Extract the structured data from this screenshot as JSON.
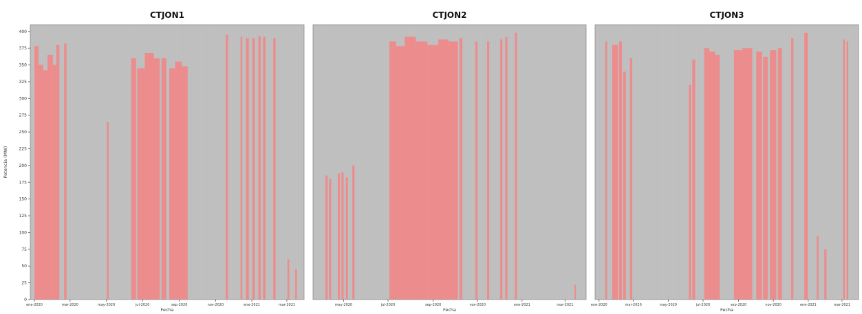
{
  "chart_data": [
    {
      "type": "bar",
      "title": "CTJON1",
      "xlabel": "Fecha",
      "ylabel": "Potencia (MW)",
      "ylim": [
        0,
        410
      ],
      "xlim": [
        "2019-12-25",
        "2021-03-30"
      ],
      "yticks": [
        0,
        25,
        50,
        75,
        100,
        125,
        150,
        175,
        200,
        225,
        250,
        275,
        300,
        325,
        350,
        375,
        400
      ],
      "xticks": [
        {
          "date": "2020-01-01",
          "label": "ene-2020"
        },
        {
          "date": "2020-03-01",
          "label": "mar-2020"
        },
        {
          "date": "2020-05-01",
          "label": "may-2020"
        },
        {
          "date": "2020-07-01",
          "label": "jul-2020"
        },
        {
          "date": "2020-09-01",
          "label": "sep-2020"
        },
        {
          "date": "2020-11-01",
          "label": "nov-2020"
        },
        {
          "date": "2021-01-01",
          "label": "ene-2021"
        },
        {
          "date": "2021-03-01",
          "label": "mar-2021"
        }
      ],
      "grid": true,
      "background_color": "#c0c0c0",
      "bar_color": "#ec8c8c",
      "bars": [
        {
          "start": "2020-01-01",
          "end": "2020-01-08",
          "value": 378
        },
        {
          "start": "2020-01-08",
          "end": "2020-01-16",
          "value": 350
        },
        {
          "start": "2020-01-16",
          "end": "2020-01-23",
          "value": 342
        },
        {
          "start": "2020-01-23",
          "end": "2020-02-01",
          "value": 365
        },
        {
          "start": "2020-02-01",
          "end": "2020-02-07",
          "value": 350
        },
        {
          "start": "2020-02-07",
          "end": "2020-02-12",
          "value": 380
        },
        {
          "start": "2020-02-20",
          "end": "2020-02-24",
          "value": 382
        },
        {
          "start": "2020-05-02",
          "end": "2020-05-05",
          "value": 265
        },
        {
          "start": "2020-06-12",
          "end": "2020-06-20",
          "value": 360
        },
        {
          "start": "2020-06-22",
          "end": "2020-07-05",
          "value": 345
        },
        {
          "start": "2020-07-05",
          "end": "2020-07-20",
          "value": 368
        },
        {
          "start": "2020-07-20",
          "end": "2020-07-30",
          "value": 360
        },
        {
          "start": "2020-08-02",
          "end": "2020-08-10",
          "value": 360
        },
        {
          "start": "2020-08-15",
          "end": "2020-08-25",
          "value": 345
        },
        {
          "start": "2020-08-25",
          "end": "2020-09-05",
          "value": 355
        },
        {
          "start": "2020-09-05",
          "end": "2020-09-15",
          "value": 348
        },
        {
          "start": "2020-11-18",
          "end": "2020-11-22",
          "value": 395
        },
        {
          "start": "2020-12-13",
          "end": "2020-12-16",
          "value": 392
        },
        {
          "start": "2020-12-22",
          "end": "2020-12-27",
          "value": 390
        },
        {
          "start": "2021-01-02",
          "end": "2021-01-06",
          "value": 390
        },
        {
          "start": "2021-01-12",
          "end": "2021-01-16",
          "value": 393
        },
        {
          "start": "2021-01-20",
          "end": "2021-01-24",
          "value": 392
        },
        {
          "start": "2021-02-06",
          "end": "2021-02-10",
          "value": 390
        },
        {
          "start": "2021-03-02",
          "end": "2021-03-05",
          "value": 60
        },
        {
          "start": "2021-03-15",
          "end": "2021-03-18",
          "value": 45
        }
      ]
    },
    {
      "type": "bar",
      "title": "CTJON2",
      "xlabel": "Fecha",
      "ylabel": "",
      "ylim": [
        0,
        410
      ],
      "xlim": [
        "2020-03-20",
        "2021-03-30"
      ],
      "xticks": [
        {
          "date": "2020-05-01",
          "label": "may-2020"
        },
        {
          "date": "2020-07-01",
          "label": "jul-2020"
        },
        {
          "date": "2020-09-01",
          "label": "sep-2020"
        },
        {
          "date": "2020-11-01",
          "label": "nov-2020"
        },
        {
          "date": "2021-01-01",
          "label": "ene-2021"
        },
        {
          "date": "2021-03-01",
          "label": "mar-2021"
        }
      ],
      "grid": true,
      "background_color": "#c0c0c0",
      "bar_color": "#ec8c8c",
      "bars": [
        {
          "start": "2020-04-06",
          "end": "2020-04-09",
          "value": 185
        },
        {
          "start": "2020-04-11",
          "end": "2020-04-14",
          "value": 180
        },
        {
          "start": "2020-04-23",
          "end": "2020-04-26",
          "value": 188
        },
        {
          "start": "2020-04-28",
          "end": "2020-05-01",
          "value": 190
        },
        {
          "start": "2020-05-04",
          "end": "2020-05-07",
          "value": 182
        },
        {
          "start": "2020-05-13",
          "end": "2020-05-16",
          "value": 200
        },
        {
          "start": "2020-07-03",
          "end": "2020-07-12",
          "value": 385
        },
        {
          "start": "2020-07-12",
          "end": "2020-07-24",
          "value": 378
        },
        {
          "start": "2020-07-24",
          "end": "2020-08-08",
          "value": 392
        },
        {
          "start": "2020-08-08",
          "end": "2020-08-24",
          "value": 385
        },
        {
          "start": "2020-08-24",
          "end": "2020-09-08",
          "value": 380
        },
        {
          "start": "2020-09-08",
          "end": "2020-09-22",
          "value": 388
        },
        {
          "start": "2020-09-22",
          "end": "2020-10-05",
          "value": 385
        },
        {
          "start": "2020-10-07",
          "end": "2020-10-11",
          "value": 390
        },
        {
          "start": "2020-10-29",
          "end": "2020-11-01",
          "value": 385
        },
        {
          "start": "2020-11-14",
          "end": "2020-11-17",
          "value": 385
        },
        {
          "start": "2020-12-02",
          "end": "2020-12-05",
          "value": 388
        },
        {
          "start": "2020-12-09",
          "end": "2020-12-12",
          "value": 392
        },
        {
          "start": "2020-12-22",
          "end": "2020-12-25",
          "value": 398
        },
        {
          "start": "2021-03-14",
          "end": "2021-03-16",
          "value": 22
        }
      ]
    },
    {
      "type": "bar",
      "title": "CTJON3",
      "xlabel": "Fecha",
      "ylabel": "",
      "ylim": [
        0,
        410
      ],
      "xlim": [
        "2019-12-25",
        "2021-03-30"
      ],
      "xticks": [
        {
          "date": "2020-01-01",
          "label": "ene-2020"
        },
        {
          "date": "2020-03-01",
          "label": "mar-2020"
        },
        {
          "date": "2020-05-01",
          "label": "may-2020"
        },
        {
          "date": "2020-07-01",
          "label": "jul-2020"
        },
        {
          "date": "2020-09-01",
          "label": "sep-2020"
        },
        {
          "date": "2020-11-01",
          "label": "nov-2020"
        },
        {
          "date": "2021-01-01",
          "label": "ene-2021"
        },
        {
          "date": "2021-03-01",
          "label": "mar-2021"
        }
      ],
      "grid": true,
      "background_color": "#c0c0c0",
      "bar_color": "#ec8c8c",
      "bars": [
        {
          "start": "2020-01-12",
          "end": "2020-01-15",
          "value": 385
        },
        {
          "start": "2020-01-24",
          "end": "2020-02-03",
          "value": 380
        },
        {
          "start": "2020-02-05",
          "end": "2020-02-10",
          "value": 385
        },
        {
          "start": "2020-02-12",
          "end": "2020-02-17",
          "value": 340
        },
        {
          "start": "2020-02-24",
          "end": "2020-02-28",
          "value": 360
        },
        {
          "start": "2020-06-06",
          "end": "2020-06-10",
          "value": 320
        },
        {
          "start": "2020-06-12",
          "end": "2020-06-17",
          "value": 358
        },
        {
          "start": "2020-07-03",
          "end": "2020-07-12",
          "value": 375
        },
        {
          "start": "2020-07-12",
          "end": "2020-07-22",
          "value": 370
        },
        {
          "start": "2020-07-22",
          "end": "2020-07-30",
          "value": 365
        },
        {
          "start": "2020-08-24",
          "end": "2020-09-08",
          "value": 372
        },
        {
          "start": "2020-09-08",
          "end": "2020-09-25",
          "value": 375
        },
        {
          "start": "2020-10-02",
          "end": "2020-10-12",
          "value": 370
        },
        {
          "start": "2020-10-14",
          "end": "2020-10-22",
          "value": 362
        },
        {
          "start": "2020-10-26",
          "end": "2020-11-06",
          "value": 372
        },
        {
          "start": "2020-11-09",
          "end": "2020-11-16",
          "value": 375
        },
        {
          "start": "2020-12-02",
          "end": "2020-12-06",
          "value": 390
        },
        {
          "start": "2020-12-25",
          "end": "2020-12-31",
          "value": 398
        },
        {
          "start": "2021-01-16",
          "end": "2021-01-19",
          "value": 95
        },
        {
          "start": "2021-01-29",
          "end": "2021-02-02",
          "value": 75
        },
        {
          "start": "2021-03-03",
          "end": "2021-03-06",
          "value": 388
        },
        {
          "start": "2021-03-09",
          "end": "2021-03-12",
          "value": 385
        }
      ]
    }
  ]
}
